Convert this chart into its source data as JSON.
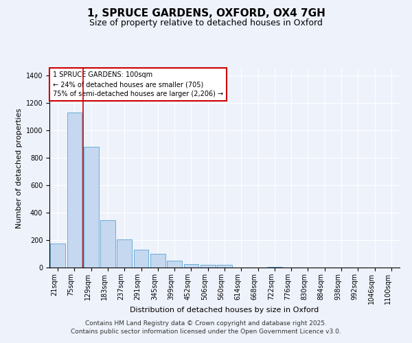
{
  "title": "1, SPRUCE GARDENS, OXFORD, OX4 7GH",
  "subtitle": "Size of property relative to detached houses in Oxford",
  "xlabel": "Distribution of detached houses by size in Oxford",
  "ylabel": "Number of detached properties",
  "bar_values": [
    175,
    1130,
    880,
    345,
    205,
    130,
    100,
    50,
    25,
    20,
    20,
    0,
    0,
    5,
    0,
    0,
    0,
    0,
    0,
    0,
    0
  ],
  "categories": [
    "21sqm",
    "75sqm",
    "129sqm",
    "183sqm",
    "237sqm",
    "291sqm",
    "345sqm",
    "399sqm",
    "452sqm",
    "506sqm",
    "560sqm",
    "614sqm",
    "668sqm",
    "722sqm",
    "776sqm",
    "830sqm",
    "884sqm",
    "938sqm",
    "992sqm",
    "1046sqm",
    "1100sqm"
  ],
  "bar_color": "#c5d8f0",
  "bar_edge_color": "#6baed6",
  "property_line_x": 1.5,
  "property_line_color": "#cc0000",
  "annotation_text": "1 SPRUCE GARDENS: 100sqm\n← 24% of detached houses are smaller (705)\n75% of semi-detached houses are larger (2,206) →",
  "annotation_box_color": "#ffffff",
  "annotation_box_edge_color": "#cc0000",
  "ylim": [
    0,
    1450
  ],
  "yticks": [
    0,
    200,
    400,
    600,
    800,
    1000,
    1200,
    1400
  ],
  "background_color": "#eef2fb",
  "grid_color": "#ffffff",
  "footer_line1": "Contains HM Land Registry data © Crown copyright and database right 2025.",
  "footer_line2": "Contains public sector information licensed under the Open Government Licence v3.0.",
  "title_fontsize": 11,
  "subtitle_fontsize": 9,
  "xlabel_fontsize": 8,
  "ylabel_fontsize": 8,
  "tick_fontsize": 7,
  "footer_fontsize": 6.5
}
